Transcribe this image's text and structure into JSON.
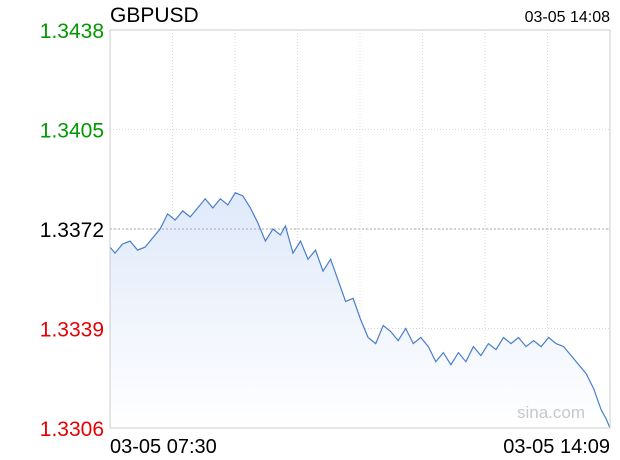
{
  "header": {
    "symbol": "GBPUSD",
    "timestamp": "03-05 14:08"
  },
  "watermark": "sina.com",
  "colors": {
    "up": "#009900",
    "down": "#e60000",
    "neutral": "#000000",
    "line": "#4a7ec9",
    "fill_top": "#dfe9fa",
    "fill_bottom": "#ffffff",
    "grid": "#d8d8d8",
    "ref_line": "#aaaaaa"
  },
  "chart_data": {
    "type": "area",
    "reference_price": 1.3372,
    "y_ticks": [
      {
        "label": "1.3438",
        "value": 1.3438,
        "status": "up"
      },
      {
        "label": "1.3405",
        "value": 1.3405,
        "status": "up"
      },
      {
        "label": "1.3372",
        "value": 1.3372,
        "status": "neutral"
      },
      {
        "label": "1.3339",
        "value": 1.3339,
        "status": "down"
      },
      {
        "label": "1.3306",
        "value": 1.3306,
        "status": "down"
      }
    ],
    "x_labels": [
      "03-05 07:30",
      "03-05 14:09"
    ],
    "ylim": [
      1.3306,
      1.3438
    ],
    "x_range_minutes": [
      0,
      399
    ],
    "grid": true,
    "vertical_gridlines": 8,
    "series": [
      {
        "x": [
          0,
          4,
          10,
          16,
          22,
          28,
          34,
          40,
          46,
          52,
          58,
          64,
          70,
          76,
          82,
          88,
          94,
          100,
          106,
          112,
          118,
          124,
          130,
          136,
          140,
          146,
          152,
          158,
          164,
          170,
          176,
          182,
          188,
          194,
          200,
          206,
          212,
          218,
          224,
          230,
          236,
          242,
          248,
          254,
          260,
          266,
          272,
          278,
          284,
          290,
          296,
          302,
          308,
          314,
          320,
          326,
          332,
          338,
          344,
          350,
          356,
          362,
          368,
          374,
          380,
          386,
          392,
          396,
          399
        ],
        "values": [
          1.3366,
          1.3364,
          1.3367,
          1.3368,
          1.3365,
          1.3366,
          1.3369,
          1.3372,
          1.3377,
          1.3375,
          1.3378,
          1.3376,
          1.3379,
          1.3382,
          1.3379,
          1.3382,
          1.338,
          1.3384,
          1.3383,
          1.3379,
          1.3374,
          1.3368,
          1.3372,
          1.337,
          1.3373,
          1.3364,
          1.3368,
          1.3362,
          1.3365,
          1.3358,
          1.3362,
          1.3355,
          1.3348,
          1.3349,
          1.3342,
          1.3336,
          1.3334,
          1.334,
          1.3338,
          1.3335,
          1.3339,
          1.3334,
          1.3336,
          1.3333,
          1.3328,
          1.3331,
          1.3327,
          1.3331,
          1.3328,
          1.3333,
          1.333,
          1.3334,
          1.3332,
          1.3336,
          1.3334,
          1.3336,
          1.3333,
          1.3335,
          1.3333,
          1.3336,
          1.3334,
          1.3333,
          1.333,
          1.3327,
          1.3324,
          1.3319,
          1.3312,
          1.3309,
          1.3306
        ]
      }
    ]
  }
}
